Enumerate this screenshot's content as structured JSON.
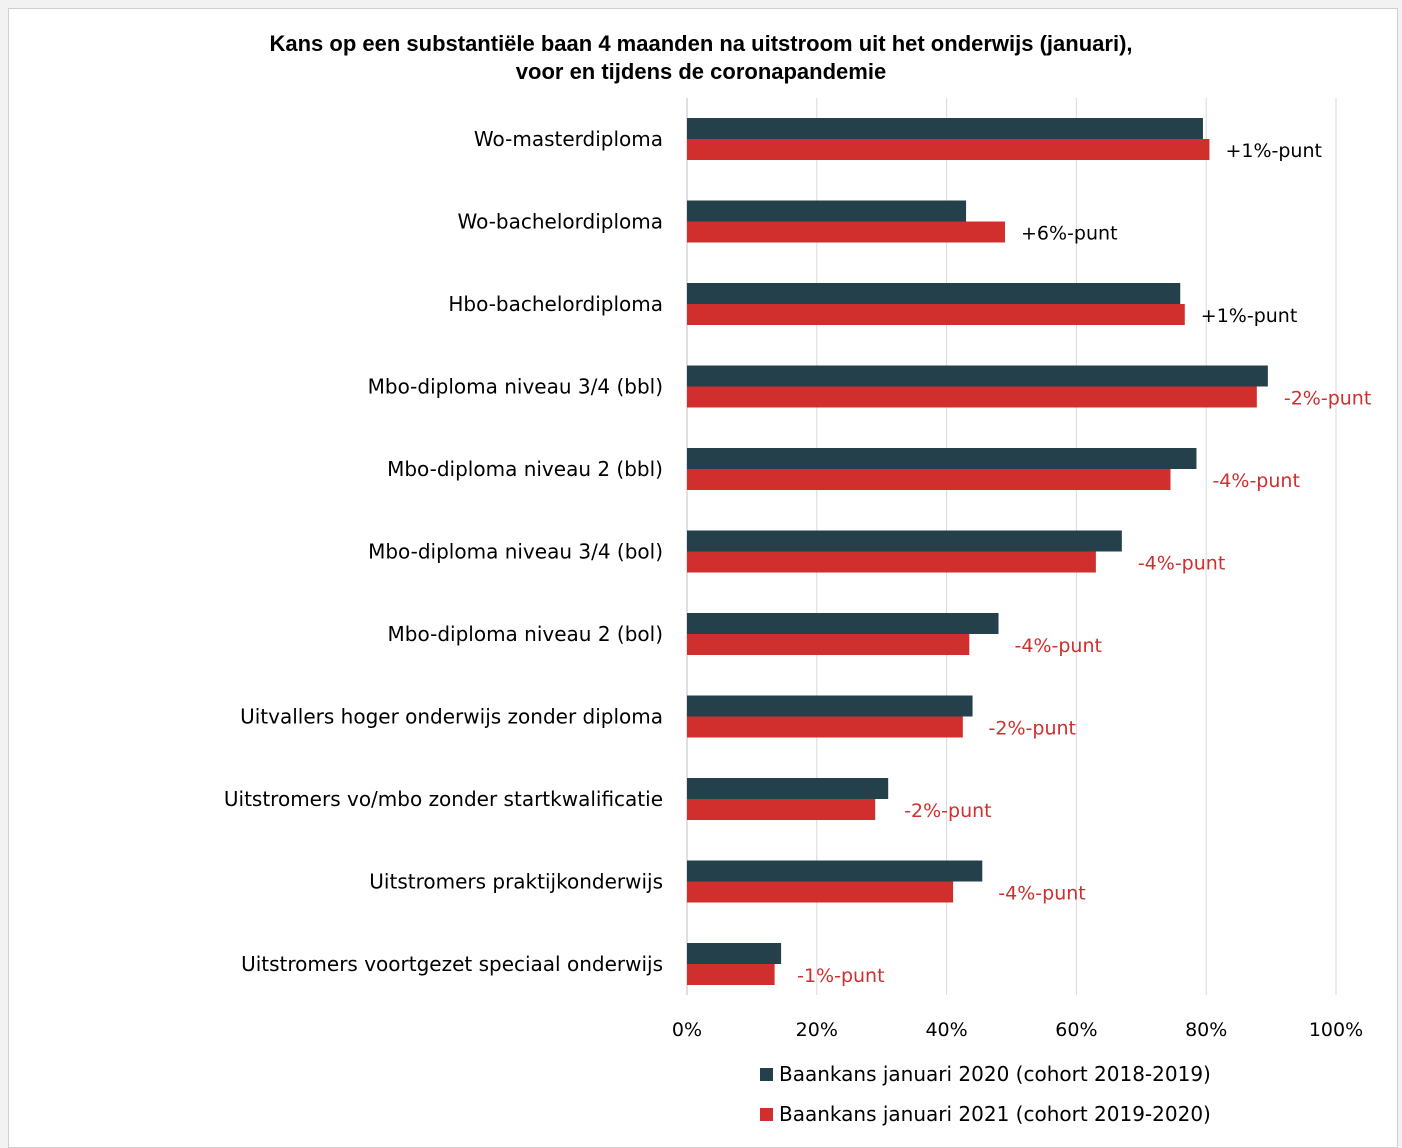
{
  "chart_data": {
    "type": "bar",
    "orientation": "horizontal",
    "title_line1": "Kans op een substantiële baan 4 maanden na uitstroom uit het onderwijs (januari),",
    "title_line2": "voor en tijdens de coronapandemie",
    "categories": [
      "Wo-masterdiploma",
      "Wo-bachelordiploma",
      "Hbo-bachelordiploma",
      "Mbo-diploma niveau 3/4 (bbl)",
      "Mbo-diploma niveau 2 (bbl)",
      "Mbo-diploma niveau 3/4 (bol)",
      "Mbo-diploma niveau 2 (bol)",
      "Uitvallers hoger onderwijs zonder diploma",
      "Uitstromers vo/mbo zonder startkwalificatie",
      "Uitstromers praktijkonderwijs",
      "Uitstromers voortgezet speciaal onderwijs"
    ],
    "series": [
      {
        "name": "Baankans januari 2020 (cohort 2018-2019)",
        "color": "#24414b",
        "values": [
          79.5,
          43,
          76,
          89.5,
          78.5,
          67,
          48,
          44,
          31,
          45.5,
          14.5
        ]
      },
      {
        "name": "Baankans januari 2021 (cohort 2019-2020)",
        "color": "#d12e2e",
        "values": [
          80.5,
          49,
          76.7,
          87.8,
          74.5,
          63,
          43.5,
          42.5,
          29,
          41,
          13.5
        ]
      }
    ],
    "annotations": [
      {
        "text": "+1%-punt",
        "color": "#000000"
      },
      {
        "text": "+6%-punt",
        "color": "#000000"
      },
      {
        "text": "+1%-punt",
        "color": "#000000"
      },
      {
        "text": "-2%-punt",
        "color": "#d12e2e"
      },
      {
        "text": "-4%-punt",
        "color": "#d12e2e"
      },
      {
        "text": "-4%-punt",
        "color": "#d12e2e"
      },
      {
        "text": "-4%-punt",
        "color": "#d12e2e"
      },
      {
        "text": "-2%-punt",
        "color": "#d12e2e"
      },
      {
        "text": "-2%-punt",
        "color": "#d12e2e"
      },
      {
        "text": "-4%-punt",
        "color": "#d12e2e"
      },
      {
        "text": "-1%-punt",
        "color": "#d12e2e"
      }
    ],
    "x_ticks": [
      "0%",
      "20%",
      "40%",
      "60%",
      "80%",
      "100%"
    ],
    "xlim": [
      0,
      100
    ],
    "grid": true,
    "legend_position": "bottom"
  }
}
